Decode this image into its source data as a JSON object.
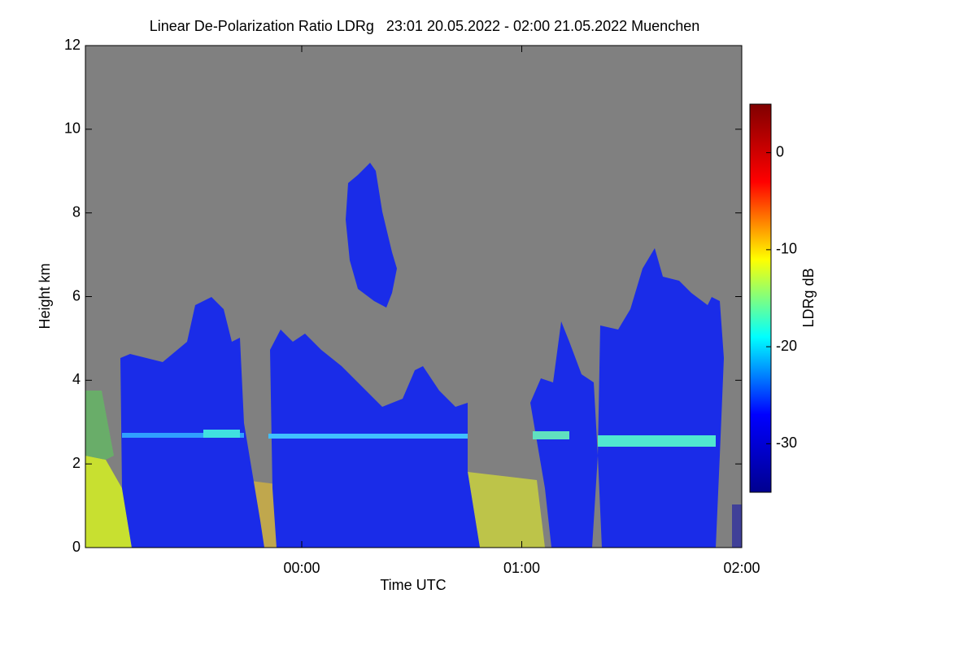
{
  "chart_data": {
    "type": "heatmap",
    "title": "Linear De-Polarization Ratio LDRg   23:01 20.05.2022 - 02:00 21.05.2022 Muenchen",
    "x_label": "Time UTC",
    "y_label": "Height km",
    "colorbar_label": "LDRg dB",
    "xlim": [
      -59,
      120
    ],
    "xticks": [
      {
        "value": 0,
        "label": "00:00"
      },
      {
        "value": 60,
        "label": "01:00"
      },
      {
        "value": 120,
        "label": "02:00"
      }
    ],
    "ylim": [
      0,
      12
    ],
    "yticks": [
      0,
      2,
      4,
      6,
      8,
      10,
      12
    ],
    "clim": [
      -35,
      5
    ],
    "cticks": [
      -30,
      -20,
      -10,
      0
    ],
    "colormap": [
      "#00008f",
      "#0000ff",
      "#00ffff",
      "#ffff00",
      "#ff0000",
      "#800000"
    ],
    "background": "#808080"
  }
}
